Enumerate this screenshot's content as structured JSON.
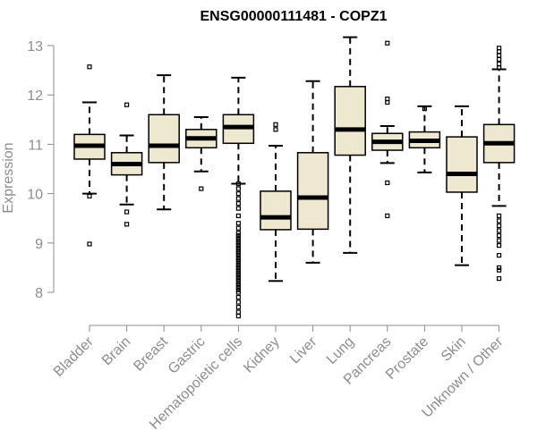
{
  "chart_data": {
    "type": "boxplot",
    "title": "ENSG00000111481 - COPZ1",
    "xlabel": "",
    "ylabel": "Expression",
    "ylim": [
      7.4,
      13.2
    ],
    "yticks": [
      8,
      9,
      10,
      11,
      12,
      13
    ],
    "colors": {
      "box_fill": "#efe8d0",
      "box_stroke": "#000000",
      "axis": "#8c8c8c"
    },
    "categories": [
      "Bladder",
      "Brain",
      "Breast",
      "Gastric",
      "Hematopoietic cells",
      "Kidney",
      "Liver",
      "Lung",
      "Pancreas",
      "Prostate",
      "Skin",
      "Unknown / Other"
    ],
    "boxes": [
      {
        "category": "Bladder",
        "whisker_low": 10.0,
        "q1": 10.7,
        "median": 10.97,
        "q3": 11.2,
        "whisker_high": 11.85,
        "outliers": [
          12.57,
          9.95,
          8.98
        ]
      },
      {
        "category": "Brain",
        "whisker_low": 9.78,
        "q1": 10.38,
        "median": 10.6,
        "q3": 10.83,
        "whisker_high": 11.18,
        "outliers": [
          11.8,
          9.63,
          9.38
        ]
      },
      {
        "category": "Breast",
        "whisker_low": 9.68,
        "q1": 10.63,
        "median": 10.97,
        "q3": 11.6,
        "whisker_high": 12.4,
        "outliers": []
      },
      {
        "category": "Gastric",
        "whisker_low": 10.45,
        "q1": 10.93,
        "median": 11.12,
        "q3": 11.3,
        "whisker_high": 11.55,
        "outliers": [
          10.1
        ]
      },
      {
        "category": "Hematopoietic cells",
        "whisker_low": 10.2,
        "q1": 11.02,
        "median": 11.35,
        "q3": 11.6,
        "whisker_high": 12.35,
        "outliers": [
          10.2,
          10.1,
          10.0,
          9.9,
          9.8,
          9.7,
          9.55,
          9.4,
          9.3,
          9.2,
          9.15,
          9.1,
          9.05,
          9.0,
          8.95,
          8.9,
          8.85,
          8.8,
          8.75,
          8.7,
          8.65,
          8.6,
          8.55,
          8.5,
          8.45,
          8.4,
          8.35,
          8.3,
          8.25,
          8.2,
          8.15,
          8.1,
          8.05,
          8.0,
          7.9,
          7.8,
          7.7,
          7.6,
          7.52
        ]
      },
      {
        "category": "Kidney",
        "whisker_low": 8.23,
        "q1": 9.27,
        "median": 9.52,
        "q3": 10.05,
        "whisker_high": 10.97,
        "outliers": [
          11.4,
          11.3
        ]
      },
      {
        "category": "Liver",
        "whisker_low": 8.6,
        "q1": 9.28,
        "median": 9.92,
        "q3": 10.83,
        "whisker_high": 12.28,
        "outliers": []
      },
      {
        "category": "Lung",
        "whisker_low": 8.8,
        "q1": 10.78,
        "median": 11.3,
        "q3": 12.17,
        "whisker_high": 13.17,
        "outliers": []
      },
      {
        "category": "Pancreas",
        "whisker_low": 10.62,
        "q1": 10.88,
        "median": 11.05,
        "q3": 11.22,
        "whisker_high": 11.37,
        "outliers": [
          13.05,
          11.92,
          11.85,
          10.22,
          9.55
        ]
      },
      {
        "category": "Prostate",
        "whisker_low": 10.43,
        "q1": 10.93,
        "median": 11.07,
        "q3": 11.25,
        "whisker_high": 11.77,
        "outliers": [
          11.72
        ]
      },
      {
        "category": "Skin",
        "whisker_low": 8.55,
        "q1": 10.03,
        "median": 10.4,
        "q3": 11.15,
        "whisker_high": 11.77,
        "outliers": []
      },
      {
        "category": "Unknown / Other",
        "whisker_low": 9.75,
        "q1": 10.63,
        "median": 11.02,
        "q3": 11.4,
        "whisker_high": 12.52,
        "outliers": [
          12.95,
          12.88,
          12.8,
          12.72,
          12.63,
          12.55,
          9.55,
          9.45,
          9.35,
          9.25,
          9.15,
          9.05,
          8.95,
          8.75,
          8.5,
          8.45,
          8.28
        ]
      }
    ]
  }
}
